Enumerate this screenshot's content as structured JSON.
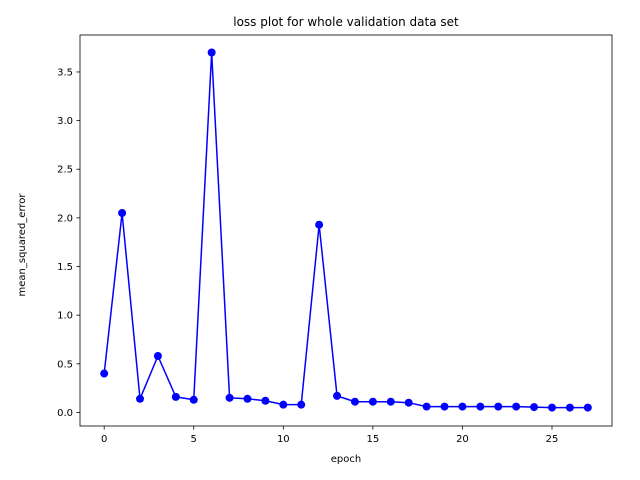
{
  "chart_data": {
    "type": "line",
    "title": "loss plot for whole validation data set",
    "xlabel": "epoch",
    "ylabel": "mean_squared_error",
    "xlim": [
      -1.35,
      28.35
    ],
    "ylim": [
      -0.1395,
      3.88
    ],
    "xticks": [
      0,
      5,
      10,
      15,
      20,
      25
    ],
    "yticks": [
      0.0,
      0.5,
      1.0,
      1.5,
      2.0,
      2.5,
      3.0,
      3.5
    ],
    "xtick_labels": [
      "0",
      "5",
      "10",
      "15",
      "20",
      "25"
    ],
    "ytick_labels": [
      "0.0",
      "0.5",
      "1.0",
      "1.5",
      "2.0",
      "2.5",
      "3.0",
      "3.5"
    ],
    "grid": false,
    "color": "#0000ff",
    "marker": "circle",
    "series": [
      {
        "x": [
          0,
          1,
          2,
          3,
          4,
          5,
          6,
          7,
          8,
          9,
          10,
          11,
          12,
          13,
          14,
          15,
          16,
          17,
          18,
          19,
          20,
          21,
          22,
          23,
          24,
          25,
          26,
          27
        ],
        "y": [
          0.4,
          2.05,
          0.14,
          0.58,
          0.16,
          0.13,
          3.7,
          0.15,
          0.14,
          0.12,
          0.08,
          0.08,
          1.93,
          0.17,
          0.11,
          0.11,
          0.11,
          0.1,
          0.06,
          0.06,
          0.06,
          0.06,
          0.06,
          0.06,
          0.055,
          0.05,
          0.05,
          0.05
        ]
      }
    ]
  }
}
